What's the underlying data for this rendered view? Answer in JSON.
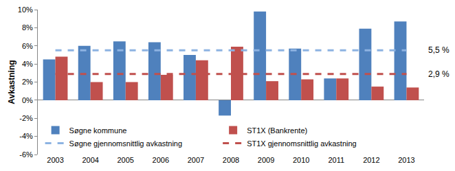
{
  "chart_data": {
    "type": "bar",
    "y_label": "Avkastning",
    "categories": [
      "2003",
      "2004",
      "2005",
      "2006",
      "2007",
      "2008",
      "2009",
      "2010",
      "2011",
      "2012",
      "2013"
    ],
    "series": [
      {
        "name": "Søgne kommune",
        "type": "bar",
        "color": "#4F81BD",
        "values": [
          4.5,
          6.0,
          6.5,
          6.4,
          5.0,
          -1.7,
          9.8,
          5.7,
          2.4,
          7.9,
          8.7
        ]
      },
      {
        "name": "ST1X (Bankrente)",
        "type": "bar",
        "color": "#C0504D",
        "values": [
          4.8,
          2.0,
          2.0,
          2.8,
          4.4,
          5.9,
          2.1,
          2.3,
          2.4,
          1.5,
          1.4
        ]
      },
      {
        "name": "Søgne gjennomsnittlig avkastning",
        "type": "line",
        "line_style": "dash",
        "color": "#8DB3E2",
        "values": [
          5.5,
          5.5,
          5.5,
          5.5,
          5.5,
          5.5,
          5.5,
          5.5,
          5.5,
          5.5,
          5.5
        ]
      },
      {
        "name": "ST1X gjennomsnittlig avkastning",
        "type": "line",
        "line_style": "dash",
        "color": "#C0504D",
        "values": [
          2.9,
          2.9,
          2.9,
          2.9,
          2.9,
          2.9,
          2.9,
          2.9,
          2.9,
          2.9,
          2.9
        ]
      }
    ],
    "annotations": [
      {
        "text": "5,5 %",
        "y": 5.5
      },
      {
        "text": "2,9 %",
        "y": 2.9
      }
    ],
    "ylim": [
      -6,
      10
    ],
    "yticks": [
      {
        "value": -6,
        "label": "-6%"
      },
      {
        "value": -4,
        "label": "-4%"
      },
      {
        "value": -2,
        "label": "-2%"
      },
      {
        "value": 0,
        "label": "0%"
      },
      {
        "value": 2,
        "label": "2%"
      },
      {
        "value": 4,
        "label": "4%"
      },
      {
        "value": 6,
        "label": "6%"
      },
      {
        "value": 8,
        "label": "8%"
      },
      {
        "value": 10,
        "label": "10%"
      }
    ],
    "grid": false,
    "legend": "bottom"
  }
}
